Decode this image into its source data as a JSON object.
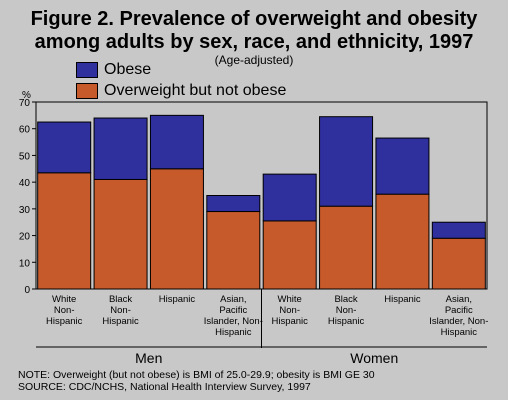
{
  "title_line1": "Figure 2.  Prevalence of overweight and obesity",
  "title_line2": "among adults by sex, race, and ethnicity, 1997",
  "subtitle": "(Age-adjusted)",
  "legend": {
    "obese": "Obese",
    "overweight": "Overweight but not obese"
  },
  "colors": {
    "obese": "#2f2f9e",
    "overweight": "#c65a2b",
    "plot_bg": "#c8c8c8"
  },
  "note_line1": "NOTE: Overweight (but not obese) is BMI of  25.0-29.9; obesity is BMI GE 30",
  "note_line2": "SOURCE: CDC/NCHS, National Health Interview Survey, 1997",
  "chart_data": {
    "type": "bar",
    "stacked": true,
    "title": "Figure 2.  Prevalence of overweight and obesity among adults by sex, race, and ethnicity, 1997",
    "subtitle": "(Age-adjusted)",
    "ylabel": "%",
    "ylim": [
      0,
      70
    ],
    "yticks": [
      0,
      10,
      20,
      30,
      40,
      50,
      60,
      70
    ],
    "grid": false,
    "legend_position": "top-left",
    "groups": [
      "Men",
      "Women"
    ],
    "categories": [
      [
        "White",
        "Non-",
        "Hispanic"
      ],
      [
        "Black",
        "Non-",
        "Hispanic"
      ],
      [
        "Hispanic"
      ],
      [
        "Asian,",
        "Pacific",
        "Islander, Non-",
        "Hispanic"
      ],
      [
        "White",
        "Non-",
        "Hispanic"
      ],
      [
        "Black",
        "Non-",
        "Hispanic"
      ],
      [
        "Hispanic"
      ],
      [
        "Asian,",
        "Pacific",
        "Islander, Non-",
        "Hispanic"
      ]
    ],
    "category_group": [
      "Men",
      "Men",
      "Men",
      "Men",
      "Women",
      "Women",
      "Women",
      "Women"
    ],
    "series": [
      {
        "name": "Overweight but not obese",
        "values": [
          43.5,
          41,
          45,
          29,
          25.5,
          31,
          35.5,
          19
        ]
      },
      {
        "name": "Obese",
        "values": [
          19,
          23,
          20,
          6,
          17.5,
          33.5,
          21,
          6
        ]
      }
    ]
  }
}
